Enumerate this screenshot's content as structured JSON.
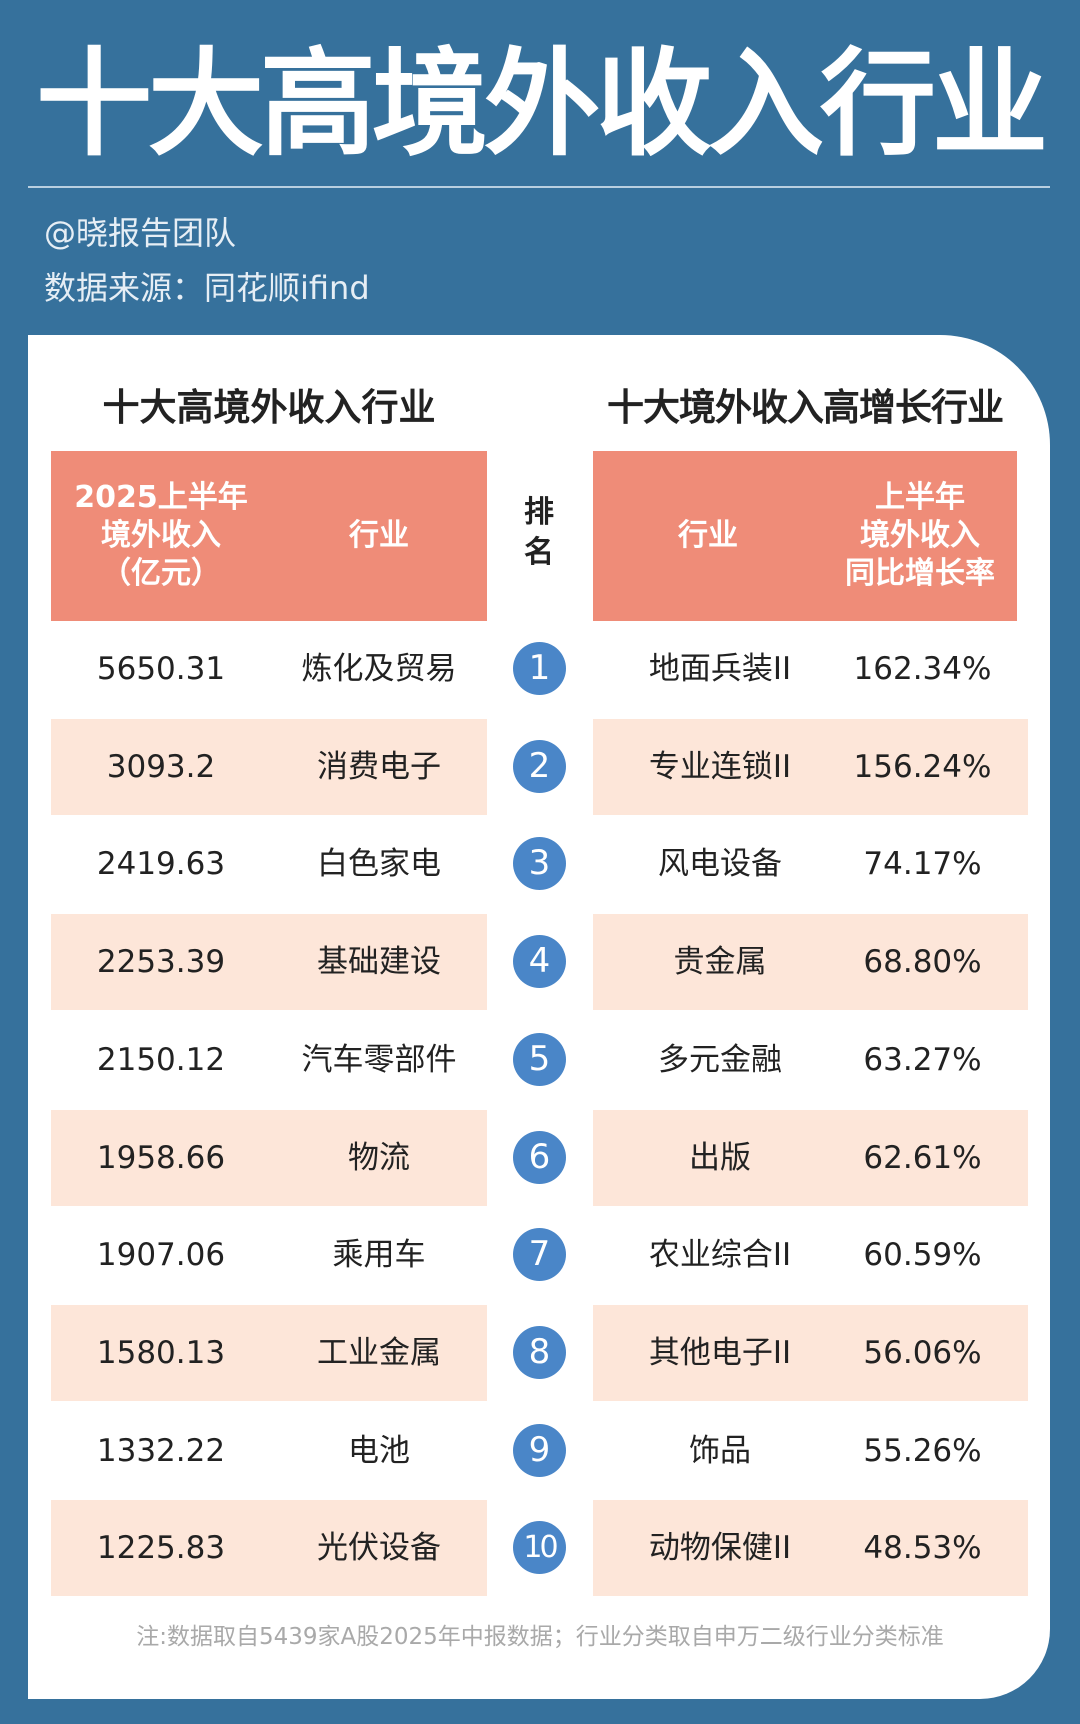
{
  "header": {
    "title": "十大高境外收入行业",
    "author": "@晓报告团队",
    "source": "数据来源：同花顺ifind"
  },
  "colors": {
    "background": "#36719c",
    "header_fill": "#ef8c78",
    "row_shade": "#fde6d9",
    "rank_badge": "#4a86c8"
  },
  "left_table": {
    "title": "十大高境外收入行业",
    "col_value_lines": [
      "2025上半年",
      "境外收入",
      "（亿元）"
    ],
    "col_industry": "行业"
  },
  "rank_header": [
    "排",
    "名"
  ],
  "right_table": {
    "title": "十大境外收入高增长行业",
    "col_industry": "行业",
    "col_growth_lines": [
      "上半年",
      "境外收入",
      "同比增长率"
    ]
  },
  "rows": [
    {
      "rank": "1",
      "value": "5650.31",
      "industry": "炼化及贸易",
      "growth_industry": "地面兵装II",
      "growth": "162.34%"
    },
    {
      "rank": "2",
      "value": "3093.2",
      "industry": "消费电子",
      "growth_industry": "专业连锁II",
      "growth": "156.24%"
    },
    {
      "rank": "3",
      "value": "2419.63",
      "industry": "白色家电",
      "growth_industry": "风电设备",
      "growth": "74.17%"
    },
    {
      "rank": "4",
      "value": "2253.39",
      "industry": "基础建设",
      "growth_industry": "贵金属",
      "growth": "68.80%"
    },
    {
      "rank": "5",
      "value": "2150.12",
      "industry": "汽车零部件",
      "growth_industry": "多元金融",
      "growth": "63.27%"
    },
    {
      "rank": "6",
      "value": "1958.66",
      "industry": "物流",
      "growth_industry": "出版",
      "growth": "62.61%"
    },
    {
      "rank": "7",
      "value": "1907.06",
      "industry": "乘用车",
      "growth_industry": "农业综合II",
      "growth": "60.59%"
    },
    {
      "rank": "8",
      "value": "1580.13",
      "industry": "工业金属",
      "growth_industry": "其他电子II",
      "growth": "56.06%"
    },
    {
      "rank": "9",
      "value": "1332.22",
      "industry": "电池",
      "growth_industry": "饰品",
      "growth": "55.26%"
    },
    {
      "rank": "10",
      "value": "1225.83",
      "industry": "光伏设备",
      "growth_industry": "动物保健II",
      "growth": "48.53%"
    }
  ],
  "footnote": "注:数据取自5439家A股2025年中报数据；行业分类取自申万二级行业分类标准"
}
